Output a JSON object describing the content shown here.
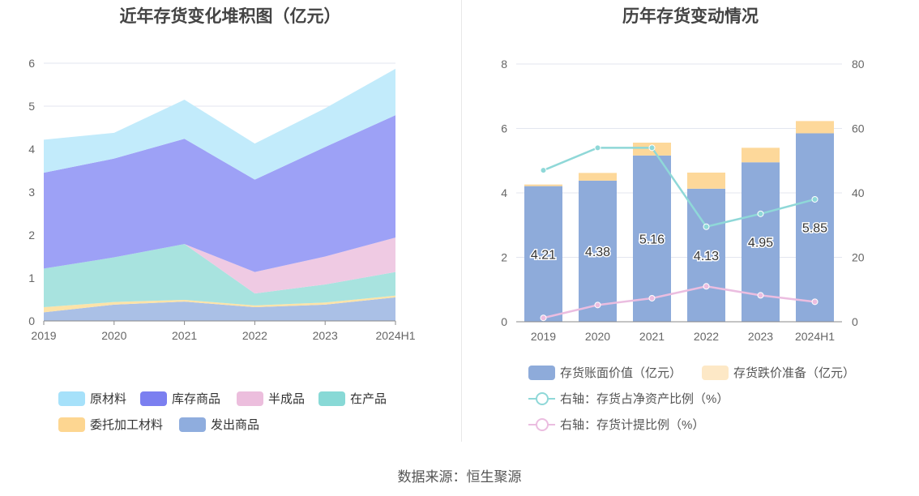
{
  "left": {
    "title": "近年存货变化堆积图（亿元）",
    "legend": [
      {
        "label": "原材料",
        "color": "#a6e1fa"
      },
      {
        "label": "库存商品",
        "color": "#7b7ff0"
      },
      {
        "label": "半成品",
        "color": "#ecbedd"
      },
      {
        "label": "在产品",
        "color": "#88d9d6"
      },
      {
        "label": "委托加工材料",
        "color": "#fdd691"
      },
      {
        "label": "发出商品",
        "color": "#8fadde"
      }
    ]
  },
  "right": {
    "title": "历年存货变动情况",
    "legend": [
      {
        "label": "存货账面价值（亿元）",
        "color": "#8eabda",
        "kind": "bar"
      },
      {
        "label": "存货跌价准备（亿元）",
        "color": "#fde8c6",
        "kind": "bar"
      },
      {
        "label": "右轴：存货占净资产比例（%）",
        "color": "#8fd8d8",
        "kind": "line"
      },
      {
        "label": "右轴：存货计提比例（%）",
        "color": "#ebbde0",
        "kind": "line"
      }
    ]
  },
  "footer": "数据来源：恒生聚源",
  "chart_data": [
    {
      "type": "area",
      "stacked": true,
      "title": "近年存货变化堆积图（亿元）",
      "categories": [
        "2019",
        "2020",
        "2021",
        "2022",
        "2023",
        "2024H1"
      ],
      "ylim": [
        0,
        6
      ],
      "yticks": [
        0,
        1,
        2,
        3,
        4,
        5,
        6
      ],
      "grid": true,
      "legend_position": "bottom",
      "series": [
        {
          "name": "发出商品",
          "color": "#aac0e6",
          "values": [
            0.2,
            0.38,
            0.45,
            0.32,
            0.38,
            0.55
          ]
        },
        {
          "name": "委托加工材料",
          "color": "#fde3a8",
          "values": [
            0.12,
            0.06,
            0.04,
            0.04,
            0.05,
            0.04
          ]
        },
        {
          "name": "在产品",
          "color": "#a8e3df",
          "values": [
            0.9,
            1.04,
            1.3,
            0.28,
            0.42,
            0.55
          ]
        },
        {
          "name": "半成品",
          "color": "#efcae3",
          "values": [
            0.0,
            0.0,
            0.0,
            0.5,
            0.65,
            0.8
          ]
        },
        {
          "name": "库存商品",
          "color": "#9da1f6",
          "values": [
            2.23,
            2.3,
            2.45,
            2.15,
            2.55,
            2.85
          ]
        },
        {
          "name": "原材料",
          "color": "#c2ebfb",
          "values": [
            0.77,
            0.6,
            0.91,
            0.84,
            0.9,
            1.08
          ]
        }
      ]
    },
    {
      "type": "bar",
      "stacked": true,
      "title": "历年存货变动情况",
      "categories": [
        "2019",
        "2020",
        "2021",
        "2022",
        "2023",
        "2024H1"
      ],
      "ylim": [
        0,
        8
      ],
      "yticks": [
        0,
        2,
        4,
        6,
        8
      ],
      "y2lim": [
        0,
        80
      ],
      "y2ticks": [
        0,
        20,
        40,
        60,
        80
      ],
      "grid": true,
      "legend_position": "bottom",
      "series": [
        {
          "name": "存货账面价值（亿元）",
          "color": "#8eabda",
          "values": [
            4.21,
            4.38,
            5.16,
            4.13,
            4.95,
            5.85
          ],
          "labels": [
            "4.21",
            "4.38",
            "5.16",
            "4.13",
            "4.95",
            "5.85"
          ]
        },
        {
          "name": "存货跌价准备（亿元）",
          "color": "#fdd89a",
          "values": [
            0.05,
            0.24,
            0.4,
            0.5,
            0.45,
            0.38
          ]
        }
      ],
      "line_series": [
        {
          "name": "右轴：存货占净资产比例（%）",
          "color": "#8fd8d8",
          "axis": "right",
          "values": [
            47,
            54,
            54,
            29.5,
            33.5,
            38
          ]
        },
        {
          "name": "右轴：存货计提比例（%）",
          "color": "#ebbde0",
          "axis": "right",
          "values": [
            1.2,
            5.2,
            7.3,
            11,
            8.2,
            6.2
          ]
        }
      ]
    }
  ]
}
